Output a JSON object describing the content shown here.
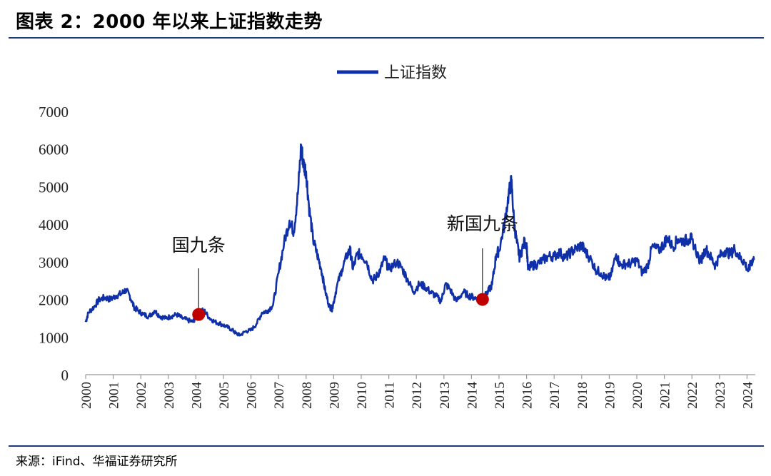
{
  "title": "图表 2：2000 年以来上证指数走势",
  "source": "来源：iFind、华福证券研究所",
  "colors": {
    "line": "#0f30a8",
    "marker": "#c00000",
    "rule": "#1f3a7a"
  },
  "chart_data": {
    "type": "line",
    "title": "",
    "xlabel": "",
    "ylabel": "",
    "ylim": [
      0,
      7000
    ],
    "xlim": [
      2000,
      2024.3
    ],
    "yticks": [
      0,
      1000,
      2000,
      3000,
      4000,
      5000,
      6000,
      7000
    ],
    "xticks": [
      "2000",
      "2001",
      "2002",
      "2003",
      "2004",
      "2005",
      "2006",
      "2007",
      "2008",
      "2009",
      "2010",
      "2011",
      "2012",
      "2013",
      "2014",
      "2015",
      "2016",
      "2017",
      "2018",
      "2019",
      "2020",
      "2021",
      "2022",
      "2023",
      "2024"
    ],
    "legend": {
      "position": "top-center",
      "entries": [
        "上证指数"
      ]
    },
    "grid": false,
    "series": [
      {
        "name": "上证指数",
        "points": [
          [
            2000.0,
            1400
          ],
          [
            2000.1,
            1650
          ],
          [
            2000.3,
            1800
          ],
          [
            2000.5,
            2000
          ],
          [
            2000.7,
            2050
          ],
          [
            2000.9,
            2000
          ],
          [
            2001.1,
            2100
          ],
          [
            2001.3,
            2150
          ],
          [
            2001.45,
            2250
          ],
          [
            2001.6,
            2100
          ],
          [
            2001.75,
            1800
          ],
          [
            2001.9,
            1700
          ],
          [
            2002.1,
            1600
          ],
          [
            2002.3,
            1550
          ],
          [
            2002.5,
            1700
          ],
          [
            2002.7,
            1550
          ],
          [
            2002.9,
            1500
          ],
          [
            2003.1,
            1550
          ],
          [
            2003.3,
            1600
          ],
          [
            2003.5,
            1500
          ],
          [
            2003.7,
            1450
          ],
          [
            2003.9,
            1400
          ],
          [
            2004.0,
            1550
          ],
          [
            2004.1,
            1700
          ],
          [
            2004.3,
            1700
          ],
          [
            2004.5,
            1500
          ],
          [
            2004.7,
            1400
          ],
          [
            2004.9,
            1350
          ],
          [
            2005.1,
            1280
          ],
          [
            2005.3,
            1200
          ],
          [
            2005.45,
            1100
          ],
          [
            2005.6,
            1050
          ],
          [
            2005.8,
            1150
          ],
          [
            2006.0,
            1180
          ],
          [
            2006.2,
            1350
          ],
          [
            2006.4,
            1650
          ],
          [
            2006.6,
            1700
          ],
          [
            2006.8,
            1850
          ],
          [
            2007.0,
            2700
          ],
          [
            2007.2,
            3500
          ],
          [
            2007.4,
            4100
          ],
          [
            2007.55,
            3800
          ],
          [
            2007.7,
            4800
          ],
          [
            2007.82,
            6100
          ],
          [
            2007.9,
            5600
          ],
          [
            2008.0,
            5400
          ],
          [
            2008.1,
            4500
          ],
          [
            2008.25,
            3600
          ],
          [
            2008.4,
            3200
          ],
          [
            2008.55,
            2800
          ],
          [
            2008.7,
            2200
          ],
          [
            2008.85,
            1800
          ],
          [
            2008.95,
            1750
          ],
          [
            2009.1,
            2300
          ],
          [
            2009.3,
            2800
          ],
          [
            2009.5,
            3200
          ],
          [
            2009.6,
            3300
          ],
          [
            2009.7,
            2800
          ],
          [
            2009.85,
            3200
          ],
          [
            2010.0,
            3200
          ],
          [
            2010.2,
            3000
          ],
          [
            2010.4,
            2500
          ],
          [
            2010.55,
            2600
          ],
          [
            2010.7,
            2800
          ],
          [
            2010.85,
            3100
          ],
          [
            2011.0,
            2800
          ],
          [
            2011.3,
            3000
          ],
          [
            2011.5,
            2800
          ],
          [
            2011.7,
            2500
          ],
          [
            2011.9,
            2200
          ],
          [
            2012.1,
            2400
          ],
          [
            2012.3,
            2350
          ],
          [
            2012.5,
            2200
          ],
          [
            2012.7,
            2100
          ],
          [
            2012.9,
            1950
          ],
          [
            2013.05,
            2400
          ],
          [
            2013.2,
            2300
          ],
          [
            2013.45,
            1950
          ],
          [
            2013.7,
            2200
          ],
          [
            2013.9,
            2100
          ],
          [
            2014.1,
            2050
          ],
          [
            2014.3,
            2000
          ],
          [
            2014.45,
            2050
          ],
          [
            2014.6,
            2200
          ],
          [
            2014.75,
            2400
          ],
          [
            2014.9,
            3200
          ],
          [
            2015.0,
            3300
          ],
          [
            2015.2,
            4000
          ],
          [
            2015.35,
            4800
          ],
          [
            2015.45,
            5150
          ],
          [
            2015.55,
            4000
          ],
          [
            2015.65,
            3500
          ],
          [
            2015.75,
            3100
          ],
          [
            2015.9,
            3500
          ],
          [
            2016.0,
            3500
          ],
          [
            2016.05,
            2800
          ],
          [
            2016.2,
            2900
          ],
          [
            2016.4,
            2950
          ],
          [
            2016.6,
            3050
          ],
          [
            2016.8,
            3150
          ],
          [
            2017.0,
            3150
          ],
          [
            2017.2,
            3250
          ],
          [
            2017.4,
            3100
          ],
          [
            2017.6,
            3250
          ],
          [
            2017.8,
            3350
          ],
          [
            2018.0,
            3450
          ],
          [
            2018.1,
            3300
          ],
          [
            2018.3,
            3100
          ],
          [
            2018.5,
            2800
          ],
          [
            2018.7,
            2700
          ],
          [
            2018.9,
            2550
          ],
          [
            2019.05,
            2600
          ],
          [
            2019.25,
            3200
          ],
          [
            2019.4,
            2900
          ],
          [
            2019.6,
            2950
          ],
          [
            2019.8,
            2950
          ],
          [
            2020.0,
            3050
          ],
          [
            2020.2,
            2700
          ],
          [
            2020.4,
            2900
          ],
          [
            2020.55,
            3400
          ],
          [
            2020.8,
            3300
          ],
          [
            2021.0,
            3500
          ],
          [
            2021.1,
            3650
          ],
          [
            2021.3,
            3400
          ],
          [
            2021.5,
            3600
          ],
          [
            2021.7,
            3550
          ],
          [
            2021.9,
            3600
          ],
          [
            2022.0,
            3600
          ],
          [
            2022.3,
            3000
          ],
          [
            2022.5,
            3350
          ],
          [
            2022.7,
            3100
          ],
          [
            2022.85,
            2900
          ],
          [
            2023.0,
            3150
          ],
          [
            2023.2,
            3300
          ],
          [
            2023.4,
            3200
          ],
          [
            2023.55,
            3350
          ],
          [
            2023.75,
            3100
          ],
          [
            2023.9,
            3000
          ],
          [
            2024.05,
            2750
          ],
          [
            2024.15,
            3000
          ],
          [
            2024.25,
            3050
          ]
        ]
      }
    ],
    "annotations": [
      {
        "text": "国九条",
        "x": 2004.1,
        "y": 1600
      },
      {
        "text": "新国九条",
        "x": 2014.4,
        "y": 2000
      }
    ]
  }
}
